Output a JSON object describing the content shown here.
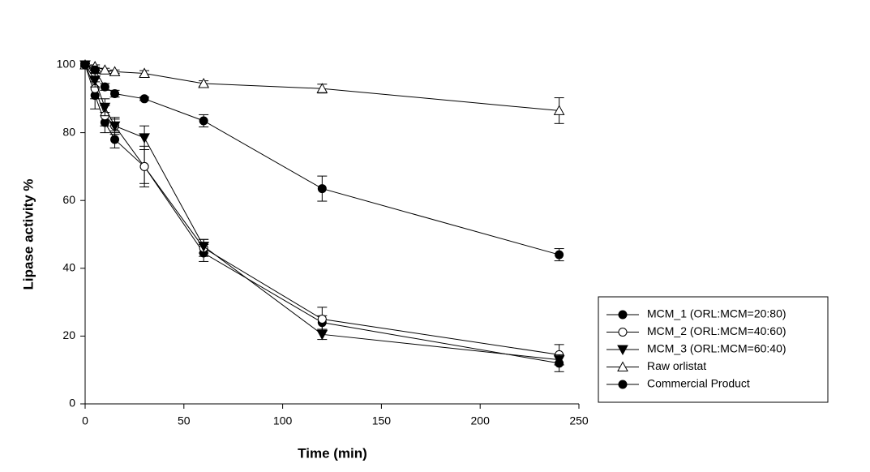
{
  "chart_data": {
    "type": "line",
    "x_label": "Time (min)",
    "y_label": "Lipase activity %",
    "x": [
      0,
      5,
      10,
      15,
      30,
      60,
      120,
      240
    ],
    "xlim": [
      0,
      250
    ],
    "xticks": [
      0,
      50,
      100,
      150,
      200,
      250
    ],
    "ylim": [
      0,
      100
    ],
    "yticks": [
      0,
      20,
      40,
      60,
      80,
      100
    ],
    "grid": false,
    "legend": "lower right",
    "series": [
      {
        "name": "MCM_1 (ORL:MCM=20:80)",
        "color": "#000000",
        "marker": "circle",
        "filled": true,
        "values": [
          100,
          91,
          83,
          78,
          70,
          44.5,
          24,
          12
        ],
        "errors": [
          0.5,
          4,
          3,
          2.5,
          6,
          2.5,
          2,
          2.5
        ]
      },
      {
        "name": "MCM_2 (ORL:MCM=40:60)",
        "color": "#000000",
        "marker": "circle",
        "filled": false,
        "values": [
          100,
          93,
          85,
          82,
          70,
          46,
          25,
          14.5
        ],
        "errors": [
          0.5,
          3,
          3,
          2.5,
          5,
          2.5,
          3.5,
          3
        ]
      },
      {
        "name": "MCM_3 (ORL:MCM=60:40)",
        "color": "#000000",
        "marker": "triangle-down",
        "filled": true,
        "values": [
          100,
          95.5,
          87.5,
          82,
          78.5,
          46.5,
          20.5,
          13
        ],
        "errors": [
          0.5,
          2,
          2.5,
          2,
          3.5,
          2,
          1.5,
          1.5
        ]
      },
      {
        "name": "Raw orlistat",
        "color": "#000000",
        "marker": "triangle-up",
        "filled": false,
        "values": [
          100,
          99.5,
          98.5,
          98,
          97.5,
          94.5,
          93,
          86.5
        ],
        "errors": [
          0.3,
          0.5,
          0.5,
          0.5,
          0.8,
          0.8,
          1.3,
          3.8
        ]
      },
      {
        "name": "Commercial Product",
        "color": "#000000",
        "marker": "circle",
        "filled": true,
        "values": [
          100,
          98.5,
          93.5,
          91.5,
          90,
          83.5,
          63.5,
          44
        ],
        "errors": [
          0.3,
          0.8,
          1,
          1,
          0.5,
          1.8,
          3.7,
          1.8
        ]
      }
    ]
  }
}
